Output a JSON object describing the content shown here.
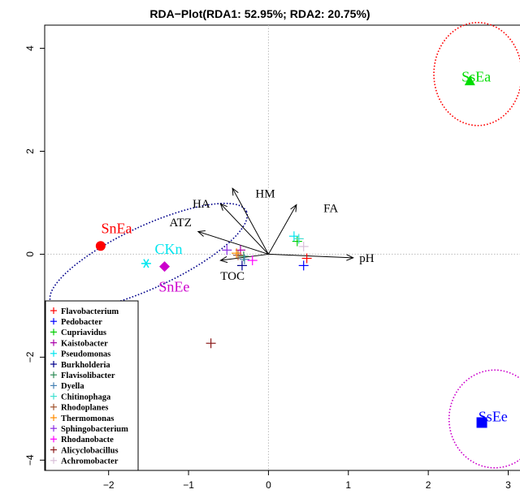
{
  "chart_data": {
    "type": "scatter",
    "title": "RDA−Plot(RDA1: 52.95%; RDA2: 20.75%)",
    "xlabel": "",
    "ylabel": "",
    "xlim": [
      -2.8,
      3.3
    ],
    "ylim": [
      -4.2,
      4.45
    ],
    "x_ticks": [
      -2,
      -1,
      0,
      1,
      2,
      3
    ],
    "y_ticks": [
      -4,
      -2,
      0,
      2,
      4
    ],
    "grid": false,
    "reference_lines": {
      "x": 0,
      "y": 0,
      "style": "dotted",
      "color": "#bbbbbb"
    },
    "samples": [
      {
        "label": "SnEa",
        "x": -2.1,
        "y": 0.16,
        "color": "#ff0000",
        "marker": "circle",
        "label_x": -1.9,
        "label_y": 0.5
      },
      {
        "label": "CKn",
        "x": -1.53,
        "y": -0.18,
        "color": "#00e5ee",
        "marker": "asterisk",
        "label_x": -1.25,
        "label_y": 0.1
      },
      {
        "label": "SnEe",
        "x": -1.3,
        "y": -0.24,
        "color": "#cc00cc",
        "marker": "diamond",
        "label_x": -1.18,
        "label_y": -0.63
      },
      {
        "label": "SsEa",
        "x": 2.52,
        "y": 3.36,
        "color": "#00dd00",
        "marker": "triangle",
        "label_x": 2.6,
        "label_y": 3.45
      },
      {
        "label": "SsEe",
        "x": 2.67,
        "y": -3.27,
        "color": "#0000ff",
        "marker": "square",
        "label_x": 2.81,
        "label_y": -3.15
      }
    ],
    "ellipses": [
      {
        "cx": -1.5,
        "cy": -0.05,
        "rx": 1.35,
        "ry": 0.6,
        "angle": -25,
        "color": "#00008b"
      },
      {
        "cx": 2.62,
        "cy": 3.5,
        "rx": 0.55,
        "ry": 1.0,
        "angle": 0,
        "color": "#ff0000"
      },
      {
        "cx": 2.83,
        "cy": -3.2,
        "rx": 0.57,
        "ry": 0.95,
        "angle": 0,
        "color": "#cc00cc"
      }
    ],
    "environmental_vectors": [
      {
        "name": "HM",
        "x": -0.45,
        "y": 1.28,
        "label_x": -0.04,
        "label_y": 1.18
      },
      {
        "name": "HA",
        "x": -0.6,
        "y": 0.98,
        "label_x": -0.84,
        "label_y": 0.98
      },
      {
        "name": "FA",
        "x": 0.35,
        "y": 0.96,
        "label_x": 0.78,
        "label_y": 0.9
      },
      {
        "name": "ATZ",
        "x": -0.88,
        "y": 0.44,
        "label_x": -1.1,
        "label_y": 0.62
      },
      {
        "name": "pH",
        "x": 1.06,
        "y": -0.07,
        "label_x": 1.23,
        "label_y": -0.07
      },
      {
        "name": "TOC",
        "x": -0.6,
        "y": -0.12,
        "label_x": -0.45,
        "label_y": -0.42
      }
    ],
    "species": [
      {
        "name": "Flavobacterium",
        "color": "#ff0000",
        "x": 0.48,
        "y": -0.08
      },
      {
        "name": "Pedobacter",
        "color": "#0000ff",
        "x": 0.44,
        "y": -0.22
      },
      {
        "name": "Cupriavidus",
        "color": "#00cc00",
        "x": 0.36,
        "y": 0.25
      },
      {
        "name": "Kaistobacter",
        "color": "#aa00aa",
        "x": -0.35,
        "y": 0.08
      },
      {
        "name": "Pseudomonas",
        "color": "#00e5ee",
        "x": 0.32,
        "y": 0.35
      },
      {
        "name": "Burkholderia",
        "color": "#00008b",
        "x": -0.33,
        "y": -0.22
      },
      {
        "name": "Flavisolibacter",
        "color": "#2e8b57",
        "x": -0.31,
        "y": -0.04
      },
      {
        "name": "Dyella",
        "color": "#4682b4",
        "x": -0.3,
        "y": -0.1
      },
      {
        "name": "Chitinophaga",
        "color": "#40e0d0",
        "x": 0.38,
        "y": 0.3
      },
      {
        "name": "Rhodoplanes",
        "color": "#a0522d",
        "x": -0.38,
        "y": -0.02
      },
      {
        "name": "Thermomonas",
        "color": "#ff8c00",
        "x": -0.4,
        "y": 0.02
      },
      {
        "name": "Sphingobacterium",
        "color": "#8a2be2",
        "x": -0.52,
        "y": 0.08
      },
      {
        "name": "Rhodanobacte",
        "color": "#ff00ff",
        "x": -0.2,
        "y": -0.12
      },
      {
        "name": "Alicyclobacillus",
        "color": "#8b1a1a",
        "x": -0.72,
        "y": -1.73
      },
      {
        "name": "Achromobacter",
        "color": "#d8bfd8",
        "x": 0.44,
        "y": 0.15
      }
    ],
    "legend_position": "bottom-left"
  }
}
